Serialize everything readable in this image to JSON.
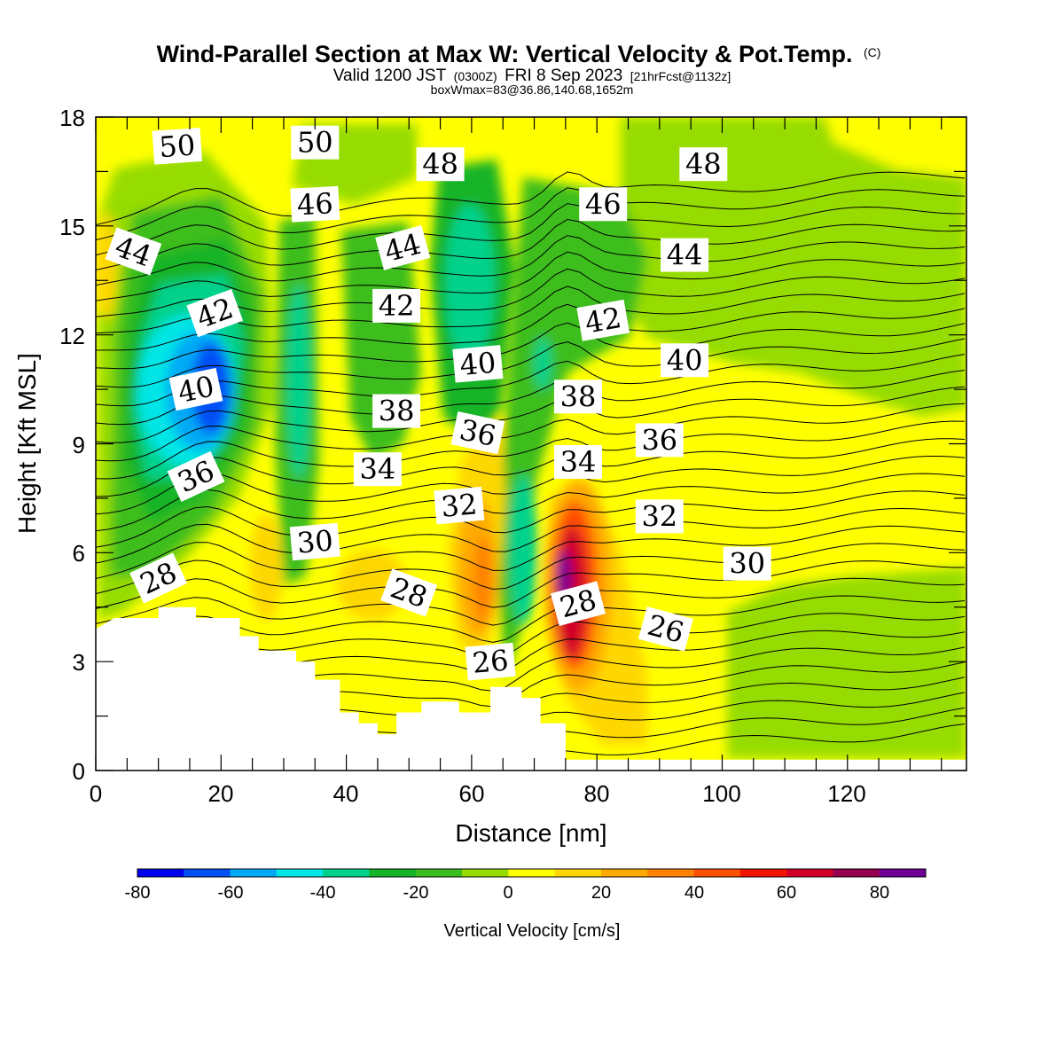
{
  "title": "Wind-Parallel Section at Max W: Vertical Velocity & Pot.Temp.",
  "title_mark": "(C)",
  "subtitle": {
    "valid": "Valid 1200 JST",
    "utc": "(0300Z)",
    "date": "FRI 8 Sep 2023",
    "fcst": "[21hrFcst@1132z]"
  },
  "box_info": "boxWmax=83@36.86,140.68,1652m",
  "chart_data": {
    "type": "heatmap",
    "xlabel": "Distance [nm]",
    "ylabel": "Height [Kft MSL]",
    "xlim": [
      0,
      139
    ],
    "ylim": [
      0,
      18
    ],
    "x_ticks": [
      "0",
      "20",
      "40",
      "60",
      "80",
      "100",
      "120"
    ],
    "y_ticks": [
      "0",
      "3",
      "6",
      "9",
      "12",
      "15",
      "18"
    ],
    "colorbar": {
      "label": "Vertical Velocity [cm/s]",
      "ticks": [
        "-80",
        "-60",
        "-40",
        "-20",
        "0",
        "20",
        "40",
        "60",
        "80"
      ],
      "levels": [
        -80,
        -70,
        -60,
        -50,
        -40,
        -30,
        -20,
        -10,
        0,
        10,
        20,
        30,
        40,
        50,
        60,
        70,
        80,
        90
      ],
      "colors": [
        "#0000f0",
        "#0050f5",
        "#00aaf5",
        "#00e6e6",
        "#00d28c",
        "#14b428",
        "#3cbe1e",
        "#96dc00",
        "#ffff00",
        "#ffd700",
        "#ffaa00",
        "#ff8200",
        "#ff5000",
        "#f51400",
        "#d20028",
        "#960050",
        "#6e0096"
      ]
    },
    "terrain_kft": [
      [
        0,
        3.9
      ],
      [
        3,
        4.2
      ],
      [
        10,
        4.2
      ],
      [
        10,
        4.5
      ],
      [
        16,
        4.5
      ],
      [
        16,
        4.2
      ],
      [
        23,
        4.2
      ],
      [
        23,
        3.7
      ],
      [
        26,
        3.7
      ],
      [
        26,
        3.3
      ],
      [
        32,
        3.3
      ],
      [
        32,
        3.0
      ],
      [
        35,
        3.0
      ],
      [
        35,
        2.5
      ],
      [
        39,
        2.5
      ],
      [
        39,
        1.6
      ],
      [
        42,
        1.6
      ],
      [
        42,
        1.3
      ],
      [
        45,
        1.3
      ],
      [
        45,
        1.0
      ],
      [
        48,
        1.0
      ],
      [
        48,
        1.6
      ],
      [
        52,
        1.6
      ],
      [
        52,
        1.9
      ],
      [
        58,
        1.9
      ],
      [
        58,
        1.6
      ],
      [
        63,
        1.6
      ],
      [
        63,
        2.3
      ],
      [
        68,
        2.3
      ],
      [
        68,
        2.0
      ],
      [
        71,
        2.0
      ],
      [
        71,
        1.3
      ],
      [
        75,
        1.3
      ],
      [
        75,
        0.3
      ],
      [
        139,
        0.3
      ]
    ],
    "theta_labels": [
      {
        "text": "50",
        "x": 13,
        "y": 17.2,
        "rot": -4
      },
      {
        "text": "50",
        "x": 35,
        "y": 17.3,
        "rot": 0
      },
      {
        "text": "48",
        "x": 55,
        "y": 16.7,
        "rot": 0
      },
      {
        "text": "48",
        "x": 97,
        "y": 16.7,
        "rot": 0
      },
      {
        "text": "46",
        "x": 35,
        "y": 15.6,
        "rot": -3
      },
      {
        "text": "46",
        "x": 81,
        "y": 15.6,
        "rot": 0
      },
      {
        "text": "44",
        "x": 6,
        "y": 14.3,
        "rot": 20
      },
      {
        "text": "44",
        "x": 49,
        "y": 14.4,
        "rot": -15
      },
      {
        "text": "44",
        "x": 94,
        "y": 14.2,
        "rot": 0
      },
      {
        "text": "42",
        "x": 19,
        "y": 12.6,
        "rot": -20
      },
      {
        "text": "42",
        "x": 48,
        "y": 12.8,
        "rot": 0
      },
      {
        "text": "42",
        "x": 81,
        "y": 12.4,
        "rot": -10
      },
      {
        "text": "40",
        "x": 16,
        "y": 10.5,
        "rot": -12
      },
      {
        "text": "40",
        "x": 61,
        "y": 11.2,
        "rot": -5
      },
      {
        "text": "40",
        "x": 94,
        "y": 11.3,
        "rot": 0
      },
      {
        "text": "38",
        "x": 48,
        "y": 9.9,
        "rot": 0
      },
      {
        "text": "38",
        "x": 77,
        "y": 10.3,
        "rot": 0
      },
      {
        "text": "36",
        "x": 16,
        "y": 8.1,
        "rot": -25
      },
      {
        "text": "36",
        "x": 61,
        "y": 9.3,
        "rot": 12
      },
      {
        "text": "36",
        "x": 90,
        "y": 9.1,
        "rot": 0
      },
      {
        "text": "34",
        "x": 45,
        "y": 8.3,
        "rot": 0
      },
      {
        "text": "34",
        "x": 77,
        "y": 8.5,
        "rot": 0
      },
      {
        "text": "32",
        "x": 58,
        "y": 7.3,
        "rot": -5
      },
      {
        "text": "32",
        "x": 90,
        "y": 7.0,
        "rot": 0
      },
      {
        "text": "30",
        "x": 35,
        "y": 6.3,
        "rot": -5
      },
      {
        "text": "30",
        "x": 104,
        "y": 5.7,
        "rot": 0
      },
      {
        "text": "28",
        "x": 10,
        "y": 5.3,
        "rot": -25
      },
      {
        "text": "28",
        "x": 50,
        "y": 4.9,
        "rot": 20
      },
      {
        "text": "28",
        "x": 77,
        "y": 4.6,
        "rot": -15
      },
      {
        "text": "26",
        "x": 91,
        "y": 3.9,
        "rot": 15
      },
      {
        "text": "26",
        "x": 63,
        "y": 3.0,
        "rot": -5
      }
    ]
  }
}
